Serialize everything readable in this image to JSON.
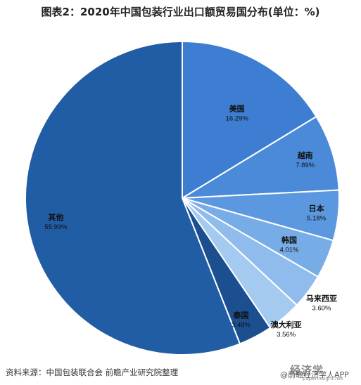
{
  "page": {
    "title": "图表2：2020年中国包装行业出口额贸易国分布(单位：%)",
    "source": "资料来源：中国包装联合会 前瞻产业研究院整理"
  },
  "watermark": {
    "brand": "经济学",
    "app_name": "@前瞻经济学人APP",
    "site": "paperinsight.net"
  },
  "chart_data": {
    "type": "pie",
    "title": "图表2：2020年中国包装行业出口额贸易国分布(单位：%)",
    "start_angle_deg": 0,
    "direction": "clockwise",
    "slices": [
      {
        "label": "美国",
        "value": 16.29,
        "value_label": "16.29%",
        "color": "#3d7ed3"
      },
      {
        "label": "越南",
        "value": 7.89,
        "value_label": "7.89%",
        "color": "#4a8ad9"
      },
      {
        "label": "日本",
        "value": 5.18,
        "value_label": "5.18%",
        "color": "#5b98e0"
      },
      {
        "label": "韩国",
        "value": 4.01,
        "value_label": "4.01%",
        "color": "#78ace6"
      },
      {
        "label": "马来西亚",
        "value": 3.6,
        "value_label": "3.60%",
        "color": "#8fbcec"
      },
      {
        "label": "澳大利亚",
        "value": 3.56,
        "value_label": "3.56%",
        "color": "#a4caf0"
      },
      {
        "label": "泰国",
        "value": 3.48,
        "value_label": "3.48%",
        "color": "#1b4f8f"
      },
      {
        "label": "其他",
        "value": 55.99,
        "value_label": "55.99%",
        "color": "#215da4"
      }
    ]
  }
}
